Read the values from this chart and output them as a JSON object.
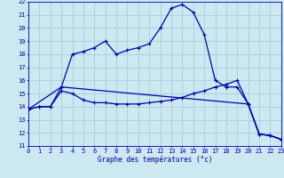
{
  "xlabel": "Graphe des températures (°c)",
  "xlim": [
    0,
    23
  ],
  "ylim": [
    11,
    22
  ],
  "yticks": [
    11,
    12,
    13,
    14,
    15,
    16,
    17,
    18,
    19,
    20,
    21,
    22
  ],
  "xticks": [
    0,
    1,
    2,
    3,
    4,
    5,
    6,
    7,
    8,
    9,
    10,
    11,
    12,
    13,
    14,
    15,
    16,
    17,
    18,
    19,
    20,
    21,
    22,
    23
  ],
  "bg_color": "#cce8f0",
  "grid_color": "#aaccdd",
  "line_color": "#0000aa",
  "line1_x": [
    0,
    1,
    2,
    3,
    4,
    5,
    6,
    7,
    8,
    9,
    10,
    11,
    12,
    13,
    14,
    15,
    16,
    17,
    18,
    19,
    20,
    21,
    22,
    23
  ],
  "line1_y": [
    13.8,
    14.0,
    14.0,
    15.5,
    18.0,
    18.2,
    18.5,
    19.0,
    18.0,
    18.3,
    18.5,
    18.8,
    20.0,
    21.5,
    21.8,
    21.2,
    19.5,
    16.0,
    15.5,
    15.5,
    14.2,
    11.9,
    11.8,
    11.5
  ],
  "line2_x": [
    0,
    1,
    2,
    3,
    4,
    5,
    6,
    7,
    8,
    9,
    10,
    11,
    12,
    13,
    14,
    15,
    16,
    17,
    18,
    19,
    20,
    21,
    22,
    23
  ],
  "line2_y": [
    13.8,
    14.0,
    14.0,
    15.2,
    15.0,
    14.5,
    14.3,
    14.3,
    14.2,
    14.2,
    14.2,
    14.3,
    14.4,
    14.5,
    14.7,
    15.0,
    15.2,
    15.5,
    15.7,
    16.0,
    14.2,
    11.9,
    11.8,
    11.5
  ],
  "line3_x": [
    0,
    3,
    20,
    21,
    22,
    23
  ],
  "line3_y": [
    13.8,
    15.5,
    14.2,
    11.9,
    11.8,
    11.5
  ]
}
